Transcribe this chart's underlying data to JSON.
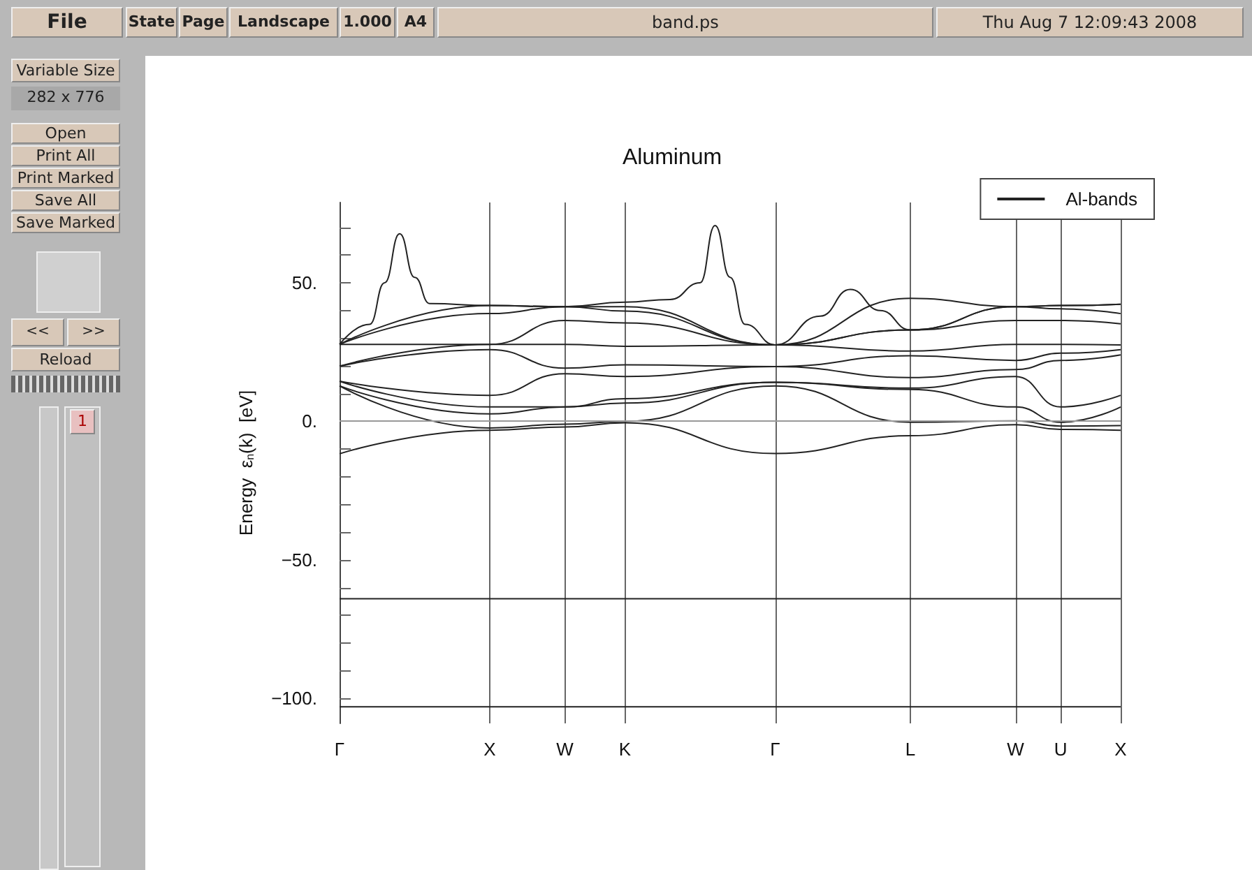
{
  "chart_data": {
    "type": "line",
    "title": "Aluminum",
    "ylabel": "Energy  ε$_{n}$(k)  [eV]",
    "categories": [
      "Γ",
      null,
      null,
      null,
      null,
      null,
      null,
      null,
      null,
      null,
      "X",
      null,
      null,
      null,
      null,
      "W",
      null,
      null,
      null,
      "K",
      null,
      null,
      null,
      null,
      null,
      null,
      null,
      null,
      null,
      "Γ",
      null,
      null,
      null,
      null,
      null,
      null,
      null,
      null,
      "L",
      null,
      null,
      null,
      null,
      null,
      null,
      "W",
      null,
      null,
      "U",
      null,
      null,
      null,
      "X"
    ],
    "ylim": [
      -109,
      79
    ],
    "yticks": [
      {
        "value": -100,
        "label": "−100."
      },
      {
        "value": -90,
        "label": null
      },
      {
        "value": -80,
        "label": null
      },
      {
        "value": -70,
        "label": null
      },
      {
        "value": -60,
        "label": null
      },
      {
        "value": -50,
        "label": "−50."
      },
      {
        "value": -40,
        "label": null
      },
      {
        "value": -30,
        "label": null
      },
      {
        "value": -20,
        "label": null
      },
      {
        "value": -10,
        "label": null
      },
      {
        "value": 0,
        "label": "0."
      },
      {
        "value": 10,
        "label": null
      },
      {
        "value": 20,
        "label": null
      },
      {
        "value": 30,
        "label": null
      },
      {
        "value": 40,
        "label": null
      },
      {
        "value": 50,
        "label": "50."
      },
      {
        "value": 60,
        "label": null
      },
      {
        "value": 70,
        "label": null
      }
    ],
    "grid": "x",
    "legend": "top right",
    "marker": "none",
    "line_style": "solid",
    "ref_lines": [
      {
        "axis": "y",
        "value": 0,
        "color": "#999999"
      }
    ],
    "annotations": [
      "File",
      "State",
      "Page",
      "Landscape",
      "1.000",
      "A4",
      "band.ps",
      "Thu Aug  7 12:09:43 2008",
      "Variable Size",
      "282 x 776",
      "Open",
      "Print All",
      "Print Marked",
      "Save All",
      "Save Marked",
      "<<",
      ">>",
      "Reload",
      "1"
    ],
    "series": [
      {
        "name": "Al-bands",
        "color": "#222222",
        "values": [
          -11.7,
          null,
          null,
          null,
          null,
          null,
          null,
          null,
          null,
          null,
          -3.2,
          null,
          null,
          null,
          null,
          -2,
          null,
          null,
          null,
          -0.5,
          null,
          null,
          null,
          null,
          null,
          null,
          null,
          null,
          null,
          -11.6,
          null,
          null,
          null,
          null,
          null,
          null,
          null,
          null,
          -5.2,
          null,
          null,
          null,
          null,
          null,
          null,
          -1.2,
          null,
          null,
          -2.9,
          null,
          null,
          null,
          -3.2
        ]
      },
      {
        "color": "#222222",
        "values": [
          12.8,
          null,
          null,
          null,
          null,
          null,
          null,
          null,
          null,
          null,
          -2.4,
          null,
          null,
          null,
          null,
          -1,
          null,
          null,
          null,
          0,
          null,
          null,
          null,
          null,
          null,
          null,
          null,
          null,
          null,
          12.8,
          null,
          null,
          null,
          null,
          null,
          null,
          null,
          null,
          -0.3,
          null,
          null,
          null,
          null,
          null,
          null,
          0.2,
          null,
          null,
          -1.7,
          null,
          null,
          null,
          -1.5
        ]
      },
      {
        "color": "#222222",
        "values": [
          12.8,
          null,
          null,
          null,
          null,
          null,
          null,
          null,
          null,
          null,
          2.7,
          null,
          null,
          null,
          null,
          5.2,
          null,
          null,
          null,
          6.6,
          null,
          null,
          null,
          null,
          null,
          null,
          null,
          null,
          null,
          14.1,
          null,
          null,
          null,
          null,
          null,
          null,
          null,
          null,
          11.5,
          null,
          null,
          null,
          null,
          null,
          null,
          5.2,
          null,
          null,
          -0.3,
          null,
          null,
          null,
          5.2
        ]
      },
      {
        "color": "#222222",
        "values": [
          14.5,
          null,
          null,
          null,
          null,
          null,
          null,
          null,
          null,
          null,
          5.2,
          null,
          null,
          null,
          null,
          5.2,
          null,
          null,
          null,
          8.2,
          null,
          null,
          null,
          null,
          null,
          null,
          null,
          null,
          null,
          14.1,
          null,
          null,
          null,
          null,
          null,
          null,
          null,
          null,
          12,
          null,
          null,
          null,
          null,
          null,
          null,
          16.2,
          null,
          null,
          5.2,
          null,
          null,
          null,
          9.4
        ]
      },
      {
        "color": "#222222",
        "values": [
          14.5,
          null,
          null,
          null,
          null,
          null,
          null,
          null,
          null,
          null,
          9.4,
          null,
          null,
          null,
          null,
          17.2,
          null,
          null,
          null,
          16.2,
          null,
          null,
          null,
          null,
          null,
          null,
          null,
          null,
          null,
          19.8,
          null,
          null,
          null,
          null,
          null,
          null,
          null,
          null,
          15.8,
          null,
          null,
          null,
          null,
          null,
          null,
          18.7,
          null,
          null,
          22,
          null,
          null,
          null,
          24
        ]
      },
      {
        "color": "#222222",
        "values": [
          19.9,
          null,
          null,
          null,
          null,
          null,
          null,
          null,
          null,
          null,
          25.9,
          null,
          null,
          null,
          null,
          19.2,
          null,
          null,
          null,
          20.4,
          null,
          null,
          null,
          null,
          null,
          null,
          null,
          null,
          null,
          19.8,
          null,
          null,
          null,
          null,
          null,
          null,
          null,
          null,
          23.7,
          null,
          null,
          null,
          null,
          null,
          null,
          22,
          null,
          null,
          24.6,
          null,
          null,
          null,
          25.9
        ]
      },
      {
        "color": "#222222",
        "values": [
          19.9,
          null,
          null,
          null,
          null,
          null,
          null,
          null,
          null,
          null,
          27.8,
          null,
          null,
          null,
          null,
          27.8,
          null,
          null,
          null,
          27.1,
          null,
          null,
          null,
          null,
          null,
          null,
          null,
          null,
          null,
          27.6,
          null,
          null,
          null,
          null,
          null,
          null,
          null,
          null,
          25.4,
          null,
          null,
          null,
          null,
          null,
          null,
          27.8,
          null,
          null,
          27.8,
          null,
          null,
          null,
          27.6
        ]
      },
      {
        "color": "#222222",
        "values": [
          27.8,
          null,
          null,
          null,
          null,
          null,
          null,
          null,
          null,
          null,
          27.8,
          null,
          null,
          null,
          null,
          36.4,
          null,
          null,
          null,
          35.5,
          null,
          null,
          null,
          null,
          null,
          null,
          null,
          null,
          null,
          27.6,
          null,
          null,
          null,
          null,
          null,
          null,
          null,
          null,
          33,
          null,
          null,
          null,
          null,
          null,
          null,
          36.4,
          null,
          null,
          36.4,
          null,
          null,
          null,
          35.2
        ]
      },
      {
        "color": "#222222",
        "values": [
          27.8,
          null,
          null,
          null,
          null,
          null,
          null,
          null,
          null,
          null,
          38.9,
          null,
          null,
          null,
          null,
          41.4,
          null,
          null,
          null,
          39.8,
          null,
          null,
          null,
          null,
          null,
          null,
          null,
          null,
          null,
          27.6,
          null,
          null,
          null,
          null,
          null,
          null,
          null,
          null,
          33,
          null,
          null,
          null,
          null,
          null,
          null,
          41.4,
          null,
          null,
          40.6,
          null,
          null,
          null,
          38.9
        ]
      },
      {
        "color": "#222222",
        "values": [
          27.8,
          null,
          null,
          null,
          null,
          null,
          null,
          null,
          null,
          null,
          41.8,
          null,
          null,
          null,
          null,
          41.4,
          null,
          null,
          null,
          41.4,
          null,
          null,
          null,
          null,
          null,
          null,
          null,
          null,
          null,
          27.6,
          null,
          null,
          null,
          null,
          null,
          null,
          null,
          null,
          44.4,
          null,
          null,
          null,
          null,
          null,
          null,
          41.4,
          null,
          null,
          41.8,
          null,
          null,
          null,
          42.3
        ]
      },
      {
        "color": "#222222",
        "values": [
          27.8,
          null,
          35,
          50,
          67.7,
          52,
          42.5,
          null,
          null,
          null,
          41.8,
          null,
          null,
          null,
          null,
          41.4,
          null,
          null,
          null,
          43,
          null,
          null,
          44,
          null,
          50,
          70.7,
          52,
          35,
          null,
          27.6,
          null,
          null,
          38,
          null,
          47.6,
          null,
          40,
          null,
          33,
          null,
          null,
          null,
          null,
          null,
          null,
          41.4,
          null,
          null,
          41.8,
          null,
          null,
          null,
          42.3
        ]
      },
      {
        "color": "#222222",
        "values": [
          -64,
          null,
          null,
          null,
          null,
          null,
          null,
          null,
          null,
          null,
          null,
          null,
          null,
          null,
          null,
          null,
          null,
          null,
          null,
          null,
          null,
          null,
          null,
          null,
          null,
          null,
          null,
          null,
          null,
          null,
          null,
          null,
          null,
          null,
          null,
          null,
          null,
          null,
          null,
          null,
          null,
          null,
          null,
          null,
          null,
          null,
          null,
          null,
          null,
          null,
          null,
          null,
          -64
        ]
      },
      {
        "color": "#222222",
        "values": [
          -103,
          null,
          null,
          null,
          null,
          null,
          null,
          null,
          null,
          null,
          null,
          null,
          null,
          null,
          null,
          null,
          null,
          null,
          null,
          null,
          null,
          null,
          null,
          null,
          null,
          null,
          null,
          null,
          null,
          null,
          null,
          null,
          null,
          null,
          null,
          null,
          null,
          null,
          null,
          null,
          null,
          null,
          null,
          null,
          null,
          null,
          null,
          null,
          null,
          null,
          null,
          null,
          -103
        ]
      }
    ]
  }
}
